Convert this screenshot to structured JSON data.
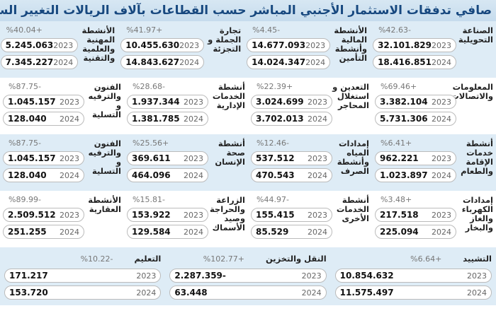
{
  "title": "صافي تدفقات الاستثمار الأجنبي المباشر حسب القطاعات بآلاف الريالات التغيير السنوي:",
  "rows": [
    [
      {
        "label": "الصناعة التحويلية",
        "pct": "%42.63-",
        "v2023": "32.101.829",
        "v2024": "18.416.851"
      },
      {
        "label": "الأنشطة المالية وأنشطة التأمين",
        "pct": "%4.45-",
        "v2023": "14.677.093",
        "v2024": "14.024.347"
      },
      {
        "label": "تجارة الجملة و التجزئة",
        "pct": "%41.97+",
        "v2023": "10.455.630",
        "v2024": "14.843.627"
      },
      {
        "label": "الأنشطة المهنية والعلمية والتقنية",
        "pct": "%40.04+",
        "v2023": "5.245.063",
        "v2024": "7.345.227"
      }
    ],
    [
      {
        "label": "المعلومات والاتصالات",
        "pct": "%69.46+",
        "v2023": "3.382.104",
        "v2024": "5.731.306"
      },
      {
        "label": "التعدين و استغلال المحاجر",
        "pct": "%22.39+",
        "v2023": "3.024.699",
        "v2024": "3.702.013"
      },
      {
        "label": "أنشطة الخدمات الإدارية",
        "pct": "%28.68-",
        "v2023": "1.937.344",
        "v2024": "1.381.785"
      },
      {
        "label": "الفنون والترفيه و التسلية",
        "pct": "%87.75-",
        "v2023": "1.045.157",
        "v2024": "128.040"
      }
    ],
    [
      {
        "label": "أنشطة خدمات الإقامة والطعام",
        "pct": "%6.41+",
        "v2023": "962.221",
        "v2024": "1.023.897"
      },
      {
        "label": "إمدادات المياه وأنشطة الصرف",
        "pct": "%12.46-",
        "v2023": "537.512",
        "v2024": "470.543"
      },
      {
        "label": "أنشطة صحة الإنسان",
        "pct": "%25.56+",
        "v2023": "369.611",
        "v2024": "464.096"
      },
      {
        "label": "الفنون والترفيه و التسلية",
        "pct": "%87.75-",
        "v2023": "1.045.157",
        "v2024": "128.040"
      }
    ],
    [
      {
        "label": "إمدادات الكهرباء والغاز والبخار",
        "pct": "%3.48+",
        "v2023": "217.518",
        "v2024": "225.094"
      },
      {
        "label": "أنشطة الخدمات الأخرى",
        "pct": "%44.97-",
        "v2023": "155.415",
        "v2024": "85.529"
      },
      {
        "label": "الزراعة والحراجة وصيد الأسماك",
        "pct": "%15.81-",
        "v2023": "153.922",
        "v2024": "129.584"
      },
      {
        "label": "الأنشطة العقارية",
        "pct": "%89.99-",
        "v2023": "2.509.512",
        "v2024": "251.255"
      }
    ]
  ],
  "last_row": [
    {
      "label": "التشييد",
      "pct": "%6.64+",
      "v2023": "10.854.632",
      "v2024": "11.575.497"
    },
    {
      "label": "النقل والتخزين",
      "pct": "%102.77+",
      "v2023": "2.287.359-",
      "v2024": "63.448"
    },
    {
      "label": "التعليم",
      "pct": "%10.22-",
      "v2023": "171.217",
      "v2024": "153.720"
    }
  ],
  "years": {
    "y1": "2023",
    "y2": "2024"
  },
  "colors": {
    "title": "#17487f",
    "row_blue": "#deecf6"
  }
}
